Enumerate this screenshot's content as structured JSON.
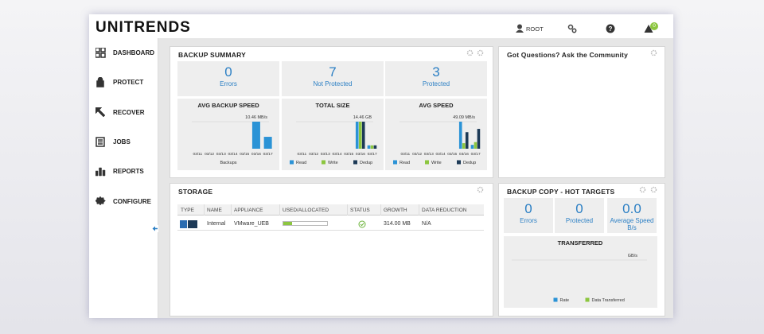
{
  "header": {
    "logo": "UNITRENDS",
    "user": "ROOT",
    "alerts": 0
  },
  "nav": [
    "DASHBOARD",
    "PROTECT",
    "RECOVER",
    "JOBS",
    "REPORTS",
    "CONFIGURE"
  ],
  "backup_summary": {
    "title": "BACKUP SUMMARY",
    "stats": [
      {
        "value": 0,
        "label": "Errors"
      },
      {
        "value": 7,
        "label": "Not Protected"
      },
      {
        "value": 3,
        "label": "Protected"
      }
    ],
    "charts": [
      {
        "type": "bar",
        "title": "AVG BACKUP SPEED",
        "legend": false,
        "categories": [
          "03/11",
          "03/12",
          "03/13",
          "03/14",
          "03/15",
          "03/16",
          "03/17"
        ],
        "max": {
          "value": 10.46,
          "label": "10.46 MB/s"
        },
        "series": [
          {
            "name": "Backups",
            "color": "#2b93d6",
            "values": [
              null,
              null,
              null,
              null,
              null,
              10.46,
              4.6
            ]
          }
        ]
      },
      {
        "type": "bar",
        "title": "TOTAL SIZE",
        "legend": true,
        "categories": [
          "03/11",
          "03/12",
          "03/13",
          "03/14",
          "03/15",
          "03/16",
          "03/17"
        ],
        "max": {
          "value": 14.46,
          "label": "14.46 GB"
        },
        "series": [
          {
            "name": "Read",
            "color": "#2b93d6",
            "values": [
              null,
              null,
              null,
              null,
              null,
              14.46,
              1.8
            ]
          },
          {
            "name": "Write",
            "color": "#8cc63f",
            "values": [
              null,
              null,
              null,
              null,
              null,
              14.46,
              1.8
            ]
          },
          {
            "name": "Dedup",
            "color": "#1d3a57",
            "values": [
              null,
              null,
              null,
              null,
              null,
              14.46,
              1.8
            ]
          }
        ]
      },
      {
        "type": "bar",
        "title": "AVG SPEED",
        "legend": true,
        "categories": [
          "03/11",
          "03/12",
          "03/13",
          "03/14",
          "03/15",
          "03/16",
          "03/17"
        ],
        "max": {
          "value": 49.09,
          "label": "49.09 MB/s"
        },
        "series": [
          {
            "name": "Read",
            "color": "#2b93d6",
            "values": [
              null,
              null,
              null,
              null,
              null,
              49.09,
              7
            ]
          },
          {
            "name": "Write",
            "color": "#8cc63f",
            "values": [
              null,
              null,
              null,
              null,
              null,
              10,
              12
            ]
          },
          {
            "name": "Dedup",
            "color": "#1d3a57",
            "values": [
              null,
              null,
              null,
              null,
              null,
              30,
              36
            ]
          }
        ]
      }
    ]
  },
  "community": {
    "title": "Got Questions? Ask the Community"
  },
  "storage": {
    "title": "STORAGE",
    "columns": [
      "TYPE",
      "NAME",
      "APPLIANCE",
      "USED/ALLOCATED",
      "STATUS",
      "GROWTH",
      "DATA REDUCTION"
    ],
    "rows": [
      {
        "name": "Internal",
        "appliance": "VMware_UEB",
        "used_percent": 20,
        "growth": "314.00 MB",
        "data_reduction": "N/A"
      }
    ]
  },
  "backup_copy": {
    "title": "BACKUP COPY - HOT TARGETS",
    "stats": [
      {
        "value": 0,
        "label": "Errors"
      },
      {
        "value": 0,
        "label": "Protected"
      },
      {
        "value": "0.0",
        "label": "Average Speed B/s"
      }
    ],
    "chart": {
      "title": "TRANSFERRED",
      "unit": "GB/s",
      "series": [
        {
          "name": "Rate",
          "color": "#2b93d6"
        },
        {
          "name": "Data Transferred",
          "color": "#8cc63f"
        }
      ]
    }
  }
}
